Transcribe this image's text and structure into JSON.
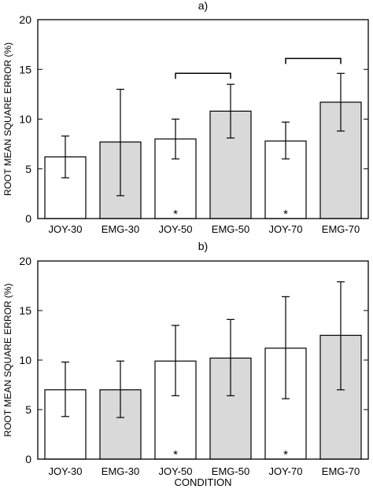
{
  "chart_data": [
    {
      "type": "bar",
      "title": "a)",
      "xlabel": "",
      "ylabel": "ROOT MEAN SQUARE ERROR (%)",
      "ylim": [
        0,
        20
      ],
      "yticks": [
        "0",
        "5",
        "10",
        "15",
        "20"
      ],
      "categories": [
        "JOY-30",
        "EMG-30",
        "JOY-50",
        "EMG-50",
        "JOY-70",
        "EMG-70"
      ],
      "values": [
        6.2,
        7.7,
        8.0,
        10.8,
        7.8,
        11.7
      ],
      "error_low": [
        4.1,
        2.3,
        6.0,
        8.1,
        6.0,
        8.8
      ],
      "error_high": [
        8.3,
        13.0,
        10.0,
        13.5,
        9.7,
        14.6
      ],
      "fills": [
        "#ffffff",
        "#d9d9d9",
        "#ffffff",
        "#d9d9d9",
        "#ffffff",
        "#d9d9d9"
      ],
      "markers": [
        {
          "index": 2,
          "label": "*"
        },
        {
          "index": 4,
          "label": "*"
        }
      ],
      "brackets": [
        {
          "from": 2,
          "to": 3,
          "y": 14.6
        },
        {
          "from": 4,
          "to": 5,
          "y": 16.1
        }
      ]
    },
    {
      "type": "bar",
      "title": "b)",
      "xlabel": "CONDITION",
      "ylabel": "ROOT MEAN SQUARE ERROR (%)",
      "ylim": [
        0,
        20
      ],
      "yticks": [
        "0",
        "5",
        "10",
        "15",
        "20"
      ],
      "categories": [
        "JOY-30",
        "EMG-30",
        "JOY-50",
        "EMG-50",
        "JOY-70",
        "EMG-70"
      ],
      "values": [
        7.0,
        7.0,
        9.9,
        10.2,
        11.2,
        12.5
      ],
      "error_low": [
        4.3,
        4.2,
        6.4,
        6.4,
        6.1,
        7.0
      ],
      "error_high": [
        9.8,
        9.9,
        13.5,
        14.1,
        16.4,
        17.9
      ],
      "fills": [
        "#ffffff",
        "#d9d9d9",
        "#ffffff",
        "#d9d9d9",
        "#ffffff",
        "#d9d9d9"
      ],
      "markers": [
        {
          "index": 2,
          "label": "*"
        },
        {
          "index": 4,
          "label": "*"
        }
      ],
      "brackets": []
    }
  ]
}
